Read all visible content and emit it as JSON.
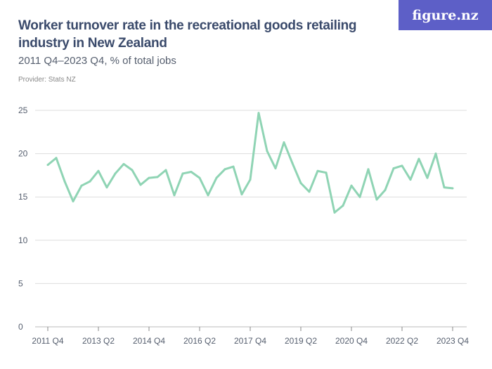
{
  "title": "Worker turnover rate in the recreational goods retailing industry in New Zealand",
  "subtitle": "2011 Q4–2023 Q4, % of total jobs",
  "provider": "Provider: Stats NZ",
  "logo": "figure.nz",
  "colors": {
    "line": "#8fd4b4",
    "grid": "#dddddd",
    "logo_bg": "#5d5fc7"
  },
  "chart_data": {
    "type": "line",
    "title": "Worker turnover rate in the recreational goods retailing industry in New Zealand",
    "ylim": [
      0,
      25
    ],
    "yticks": [
      0,
      5,
      10,
      15,
      20,
      25
    ],
    "grid": true,
    "xtick_labels": [
      "2011 Q4",
      "2013 Q2",
      "2014 Q4",
      "2016 Q2",
      "2017 Q4",
      "2019 Q2",
      "2020 Q4",
      "2022 Q2",
      "2023 Q4"
    ],
    "x_start": "2011 Q4",
    "x_end": "2023 Q4",
    "values": [
      18.7,
      19.5,
      16.8,
      14.5,
      16.3,
      16.8,
      18.0,
      16.1,
      17.7,
      18.8,
      18.1,
      16.4,
      17.2,
      17.3,
      18.1,
      15.2,
      17.7,
      17.9,
      17.2,
      15.2,
      17.2,
      18.2,
      18.5,
      15.3,
      17.0,
      24.7,
      20.3,
      18.3,
      21.3,
      18.9,
      16.6,
      15.6,
      18.0,
      17.8,
      13.2,
      14.0,
      16.3,
      15.0,
      18.2,
      14.7,
      15.8,
      18.3,
      18.6,
      17.0,
      19.4,
      17.2,
      20.0,
      16.1,
      16.0
    ]
  }
}
